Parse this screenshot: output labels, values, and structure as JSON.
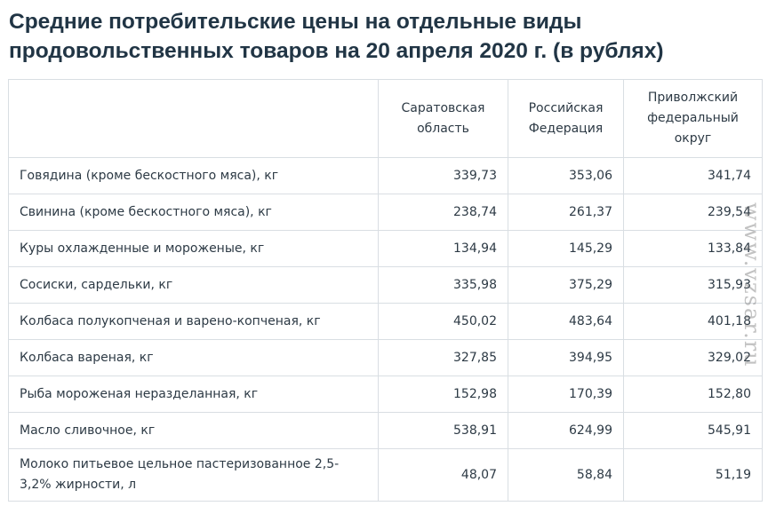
{
  "title": "Средние потребительские цены на отдельные виды продовольственных товаров на 20 апреля 2020 г. (в рублях)",
  "table": {
    "headers": [
      "",
      "Саратовская область",
      "Российская Федерация",
      "Приволжский федеральный округ"
    ],
    "rows": [
      {
        "name": "Говядина (кроме бескостного мяса), кг",
        "v1": "339,73",
        "v2": "353,06",
        "v3": "341,74"
      },
      {
        "name": "Свинина (кроме бескостного мяса), кг",
        "v1": "238,74",
        "v2": "261,37",
        "v3": "239,54"
      },
      {
        "name": "Куры охлажденные и мороженые, кг",
        "v1": "134,94",
        "v2": "145,29",
        "v3": "133,84"
      },
      {
        "name": "Сосиски, сардельки, кг",
        "v1": "335,98",
        "v2": "375,29",
        "v3": "315,93"
      },
      {
        "name": "Колбаса полукопченая и варено-копченая, кг",
        "v1": "450,02",
        "v2": "483,64",
        "v3": "401,18"
      },
      {
        "name": "Колбаса вареная, кг",
        "v1": "327,85",
        "v2": "394,95",
        "v3": "329,02"
      },
      {
        "name": "Рыба мороженая неразделанная, кг",
        "v1": "152,98",
        "v2": "170,39",
        "v3": "152,80"
      },
      {
        "name": "Масло сливочное, кг",
        "v1": "538,91",
        "v2": "624,99",
        "v3": "545,91"
      },
      {
        "name": "Молоко питьевое цельное пастеризованное 2,5-3,2% жирности, л",
        "v1": "48,07",
        "v2": "58,84",
        "v3": "51,19"
      }
    ]
  },
  "watermark": "www.vzsar.ru"
}
